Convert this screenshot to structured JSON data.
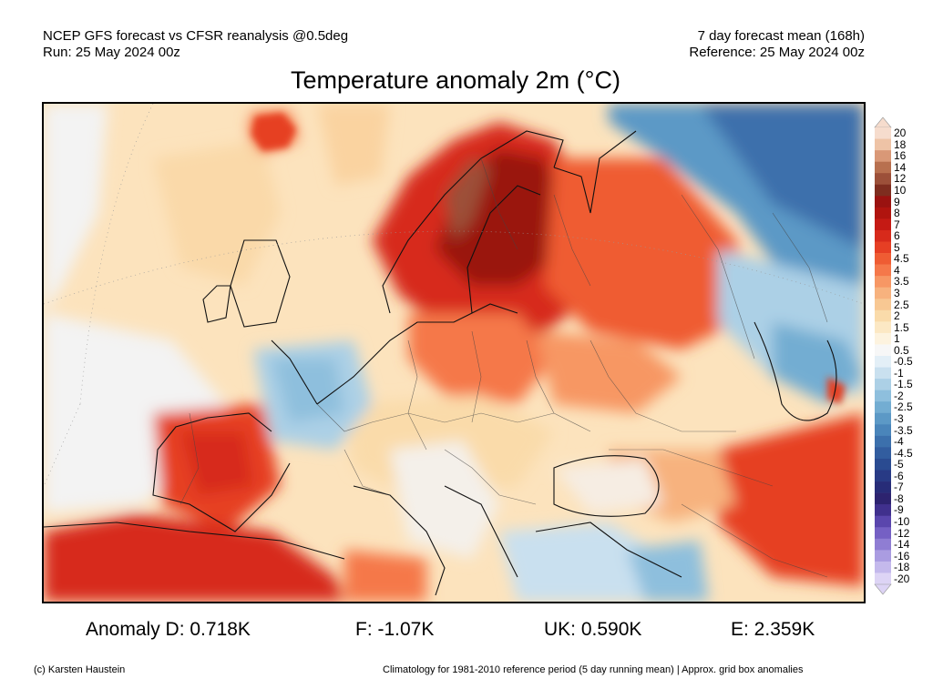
{
  "header": {
    "line1_left": "NCEP GFS forecast vs CFSR reanalysis @0.5deg",
    "line2_left": "Run: 25 May 2024 00z",
    "line1_right": "7 day forecast mean (168h)",
    "line2_right": "Reference: 25 May 2024 00z"
  },
  "title": "Temperature anomaly 2m (°C)",
  "colorbar": {
    "labels": [
      "20",
      "18",
      "16",
      "14",
      "12",
      "10",
      "9",
      "8",
      "7",
      "6",
      "5",
      "4.5",
      "4",
      "3.5",
      "3",
      "2.5",
      "2",
      "1.5",
      "1",
      "0.5",
      "-0.5",
      "-1",
      "-1.5",
      "-2",
      "-2.5",
      "-3",
      "-3.5",
      "-4",
      "-4.5",
      "-5",
      "-6",
      "-7",
      "-8",
      "-9",
      "-10",
      "-12",
      "-14",
      "-16",
      "-18",
      "-20"
    ],
    "colors": [
      "#f6dccd",
      "#eec3a6",
      "#d99877",
      "#b8704f",
      "#9c5039",
      "#7e2d1f",
      "#9a1210",
      "#b0140f",
      "#c51a14",
      "#d72a1b",
      "#e63f24",
      "#ef5c33",
      "#f5784a",
      "#f79764",
      "#f7b27e",
      "#f8c893",
      "#fadbaa",
      "#fce8c4",
      "#fdf3df",
      "#f7f7f7",
      "#e3eff7",
      "#c9e0ef",
      "#acd0e6",
      "#8ebfdd",
      "#73add2",
      "#5c99c6",
      "#4a85ba",
      "#3c70ac",
      "#325d9f",
      "#2a4b91",
      "#283a85",
      "#272c78",
      "#2d236f",
      "#40308d",
      "#5a46ad",
      "#7560c4",
      "#8f7dd3",
      "#aa9ce1",
      "#c4b9ec",
      "#ddd4f5"
    ]
  },
  "stats": {
    "d": "Anomaly D: 0.718K",
    "f": "F: -1.07K",
    "uk": "UK: 0.590K",
    "e": "E: 2.359K"
  },
  "footer": {
    "left": "(c) Karsten Haustein",
    "right": "Climatology for 1981-2010 reference period (5 day running mean) | Approx. grid box anomalies"
  }
}
